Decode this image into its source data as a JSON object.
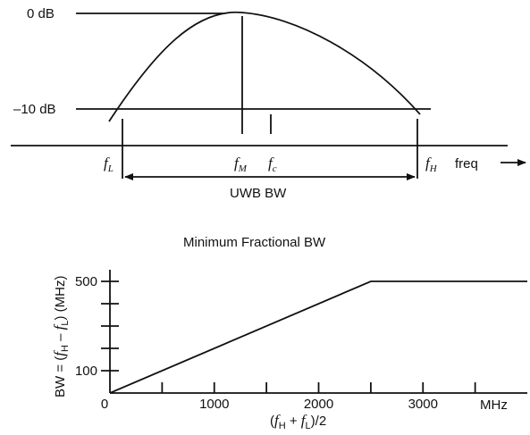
{
  "top_diagram": {
    "level_0db": "0 dB",
    "level_minus10db": "–10 dB",
    "f_low": {
      "base": "f",
      "sub": "L"
    },
    "f_mid": {
      "base": "f",
      "sub": "M"
    },
    "f_center": {
      "base": "f",
      "sub": "c"
    },
    "f_high": {
      "base": "f",
      "sub": "H"
    },
    "freq_axis_label": "freq",
    "bandwidth_label": "UWB BW"
  },
  "chart_data": {
    "type": "line",
    "title": "Minimum Fractional BW",
    "xlabel": "(f_H + f_L)/2",
    "ylabel": "BW = (f_H − f_L) (MHz)",
    "x_unit_label": "MHz",
    "x_ticks": [
      "0",
      "1000",
      "2000",
      "3000"
    ],
    "y_ticks": [
      "100",
      "500"
    ],
    "xlim": [
      0,
      4000
    ],
    "ylim": [
      0,
      560
    ],
    "series": [
      {
        "x": [
          0,
          2500,
          4000
        ],
        "y": [
          0,
          500,
          500
        ]
      }
    ]
  },
  "chart_text": {
    "ylabel_pre": "BW = (",
    "ylabel_f1": "f",
    "ylabel_s1": "H",
    "ylabel_mid": " – ",
    "ylabel_f2": "f",
    "ylabel_s2": "L",
    "ylabel_post": ") (MHz)",
    "xlabel_pre": "(",
    "xlabel_f1": "f",
    "xlabel_s1": "H",
    "xlabel_mid": " + ",
    "xlabel_f2": "f",
    "xlabel_s2": "L",
    "xlabel_post": ")/2"
  }
}
